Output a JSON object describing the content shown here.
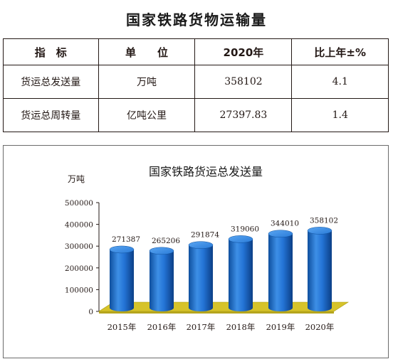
{
  "page": {
    "title": "国家铁路货物运输量"
  },
  "table": {
    "headers": [
      "指　标",
      "单　　位",
      "2020年",
      "比上年±%"
    ],
    "rows": [
      [
        "货运总发送量",
        "万吨",
        "358102",
        "4.1"
      ],
      [
        "货运总周转量",
        "亿吨公里",
        "27397.83",
        "1.4"
      ]
    ]
  },
  "chart_data": {
    "type": "bar",
    "title": "国家铁路货运总发送量",
    "ylabel": "万吨",
    "xlabel": "",
    "categories": [
      "2015年",
      "2016年",
      "2017年",
      "2018年",
      "2019年",
      "2020年"
    ],
    "values": [
      271387,
      265206,
      291874,
      319060,
      344010,
      358102
    ],
    "ylim": [
      0,
      500000
    ],
    "yticks": [
      "500000",
      "400000",
      "300000",
      "200000",
      "100000",
      "0"
    ],
    "grid": false,
    "legend": "none",
    "style": "3d-cylinder",
    "colors": {
      "bar": "#1f6fd1",
      "floor": "#d6c32a"
    }
  }
}
